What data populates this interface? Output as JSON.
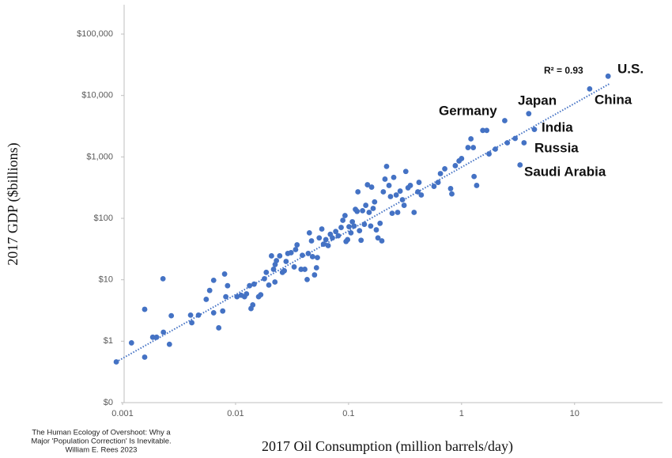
{
  "chart_data": {
    "type": "scatter",
    "xlabel": "2017 Oil Consumption (million barrels/day)",
    "ylabel": "2017 GDP ($billions)",
    "xlog": true,
    "ylog": true,
    "xlim": [
      0.001,
      60
    ],
    "ylim": [
      0.1,
      300000
    ],
    "xticks": [
      0.001,
      0.01,
      0.1,
      1,
      10
    ],
    "yticks": [
      {
        "value": 0.1,
        "label": "$0"
      },
      {
        "value": 1,
        "label": "$1"
      },
      {
        "value": 10,
        "label": "$10"
      },
      {
        "value": 100,
        "label": "$100"
      },
      {
        "value": 1000,
        "label": "$1,000"
      },
      {
        "value": 10000,
        "label": "$10,000"
      },
      {
        "value": 100000,
        "label": "$100,000"
      }
    ],
    "color": "#4472c4",
    "x": [
      0.00088,
      0.0012,
      0.00157,
      0.00157,
      0.00185,
      0.002,
      0.00228,
      0.0023,
      0.0026,
      0.0027,
      0.004,
      0.0041,
      0.0047,
      0.0055,
      0.0059,
      0.0064,
      0.0064,
      0.0071,
      0.0077,
      0.008,
      0.0082,
      0.0085,
      0.0103,
      0.0112,
      0.012,
      0.0125,
      0.0133,
      0.0137,
      0.0142,
      0.0146,
      0.016,
      0.0167,
      0.018,
      0.0187,
      0.0197,
      0.0208,
      0.0217,
      0.0224,
      0.0223,
      0.023,
      0.0246,
      0.026,
      0.027,
      0.028,
      0.029,
      0.031,
      0.033,
      0.034,
      0.035,
      0.038,
      0.039,
      0.041,
      0.043,
      0.044,
      0.045,
      0.047,
      0.048,
      0.05,
      0.052,
      0.053,
      0.055,
      0.058,
      0.06,
      0.063,
      0.066,
      0.069,
      0.072,
      0.077,
      0.081,
      0.086,
      0.089,
      0.093,
      0.095,
      0.098,
      0.101,
      0.105,
      0.108,
      0.112,
      0.115,
      0.119,
      0.121,
      0.125,
      0.129,
      0.133,
      0.138,
      0.142,
      0.147,
      0.152,
      0.157,
      0.16,
      0.165,
      0.17,
      0.176,
      0.182,
      0.19,
      0.197,
      0.203,
      0.21,
      0.217,
      0.228,
      0.235,
      0.243,
      0.251,
      0.264,
      0.272,
      0.286,
      0.3,
      0.31,
      0.321,
      0.336,
      0.352,
      0.38,
      0.41,
      0.42,
      0.44,
      0.57,
      0.62,
      0.65,
      0.71,
      0.8,
      0.82,
      0.88,
      0.95,
      1.0,
      1.14,
      1.21,
      1.27,
      1.29,
      1.36,
      1.54,
      1.67,
      1.75,
      1.99,
      2.41,
      2.54,
      2.98,
      3.29,
      3.57,
      3.93,
      4.41,
      13.6,
      19.8
    ],
    "values": [
      0.46,
      0.94,
      3.3,
      0.55,
      1.16,
      1.16,
      10.4,
      1.4,
      0.89,
      2.6,
      2.66,
      2.0,
      2.66,
      4.8,
      6.7,
      9.8,
      2.9,
      1.65,
      3.1,
      12.4,
      5.3,
      8.0,
      5.3,
      5.6,
      5.3,
      5.9,
      8.0,
      3.4,
      3.9,
      8.5,
      5.3,
      5.7,
      10.4,
      13.2,
      8.2,
      24.5,
      14.8,
      17.7,
      9.2,
      20.5,
      24.5,
      13.2,
      14.0,
      19.9,
      26.8,
      27.6,
      16.2,
      31,
      37,
      14.8,
      25,
      14.8,
      10.1,
      26.8,
      58,
      43,
      23.8,
      12.0,
      15.7,
      23,
      48,
      67,
      38,
      45,
      36,
      55,
      48,
      61,
      52,
      71,
      93,
      111,
      42,
      45,
      73,
      58,
      88,
      75,
      140,
      130,
      270,
      63,
      44,
      133,
      80,
      163,
      352,
      125,
      75,
      322,
      145,
      185,
      65,
      48,
      83,
      43,
      270,
      435,
      700,
      343,
      226,
      121,
      464,
      240,
      125,
      278,
      201,
      163,
      580,
      314,
      343,
      125,
      270,
      385,
      240,
      332,
      385,
      535,
      640,
      305,
      250,
      720,
      860,
      940,
      1420,
      1970,
      1420,
      480,
      343,
      2700,
      2700,
      1120,
      1340,
      3900,
      1700,
      2000,
      740,
      1700,
      5060,
      2800,
      12800,
      20600
    ],
    "trendline": {
      "x": [
        0.00088,
        20.6
      ],
      "y": [
        0.46,
        15700
      ]
    },
    "annotations": [
      "R² = 0.93",
      "U.S.",
      "China",
      "Germany",
      "Japan",
      "India",
      "Russia",
      "Saudi Arabia"
    ],
    "source": [
      "The Human Ecology of Overshoot: Why a",
      "Major 'Population Correction' Is Inevitable.",
      "William E. Rees 2023"
    ]
  }
}
